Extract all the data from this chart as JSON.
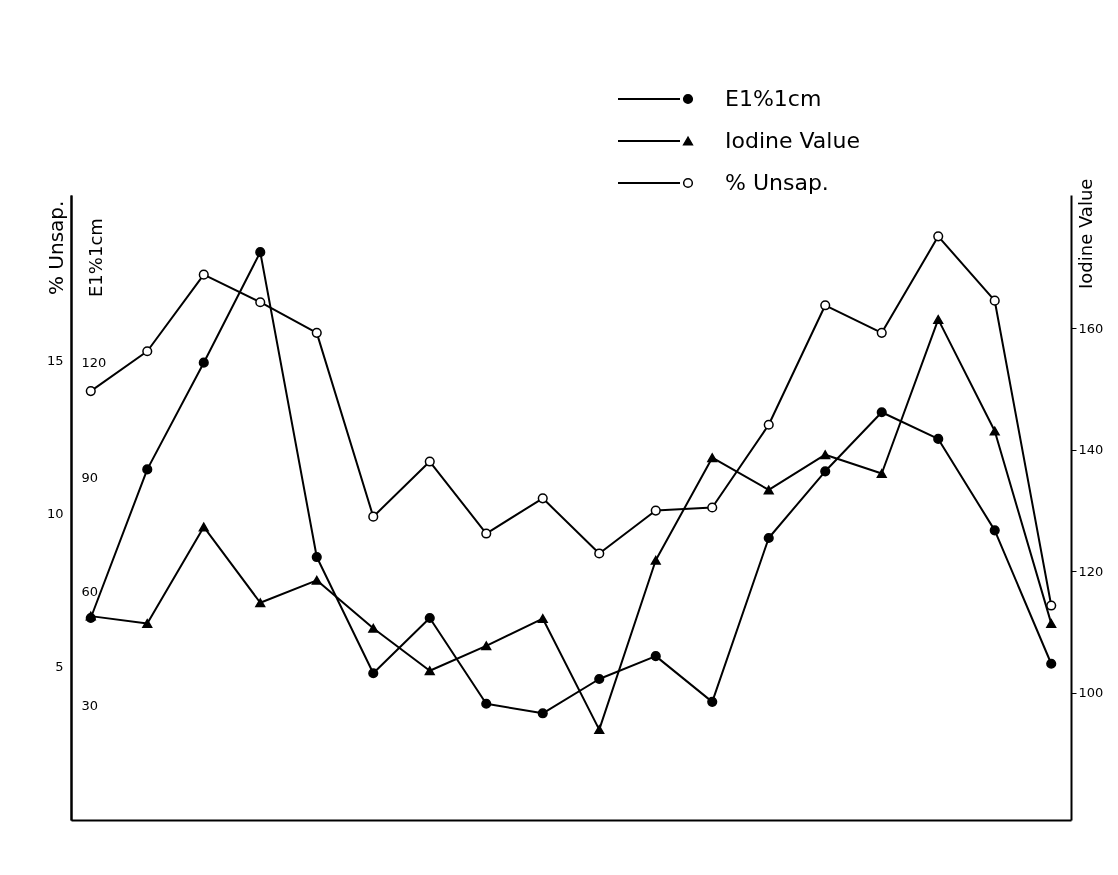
{
  "chart_data": {
    "type": "line",
    "ylabel": "% Unsap.",
    "y2label": "E1%1cm",
    "y3label": "Iodine Value",
    "categories": [
      null,
      null,
      null,
      null,
      null,
      null,
      null,
      null,
      null,
      null,
      null,
      null,
      null,
      null,
      null,
      null,
      null,
      null
    ],
    "ylim": [
      0,
      20.4
    ],
    "yticks": [
      5,
      10,
      15
    ],
    "y2lim": [
      0,
      164
    ],
    "y2ticks": [
      30,
      60,
      90,
      120
    ],
    "y3lim": [
      79,
      182
    ],
    "y3ticks": [
      100,
      120,
      140,
      160
    ],
    "tick_labels": "y",
    "grid": false,
    "legend": "top",
    "line_style": "solid",
    "series": [
      {
        "name": "E1%1cm",
        "axis": "y2",
        "color": "#000000",
        "marker": "circle",
        "values": [
          53,
          92,
          120,
          149,
          69,
          38.5,
          53,
          30.5,
          28,
          37,
          43,
          31,
          74,
          91.5,
          107,
          100,
          76,
          41
        ]
      },
      {
        "name": "Iodine Value",
        "axis": "y3",
        "color": "#000000",
        "marker": "triangle",
        "values": [
          112.6,
          111.4,
          127.3,
          114.8,
          118.5,
          110.6,
          103.6,
          107.7,
          112.2,
          93.9,
          121.8,
          138.7,
          133.4,
          139.2,
          136.1,
          161.5,
          143.1,
          111.4
        ]
      },
      {
        "name": "% Unsap.",
        "axis": "y",
        "color": "#000000",
        "marker": "circle",
        "values": [
          14.0,
          15.3,
          17.8,
          16.9,
          15.9,
          9.9,
          11.7,
          9.35,
          10.5,
          8.7,
          10.1,
          10.2,
          12.9,
          16.8,
          15.9,
          19.05,
          16.95,
          7.0
        ]
      }
    ]
  }
}
